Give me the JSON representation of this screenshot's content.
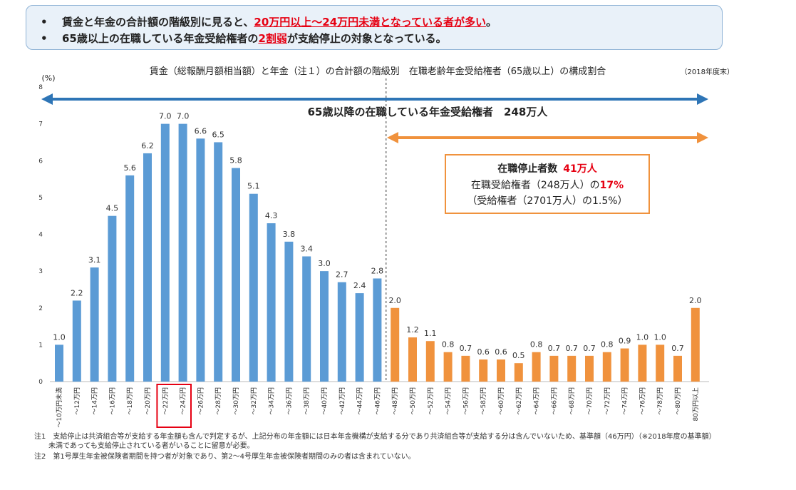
{
  "summary": {
    "line1": {
      "bullet": "•",
      "prefix": "賃金と年金の合計額の階級別に見ると、",
      "highlight": "20万円以上～24万円未満となっている者が多い",
      "suffix": "。"
    },
    "line2": {
      "bullet": "•",
      "prefix": "65歳以上の在職している年金受給権者の",
      "highlight": "2割弱",
      "suffix": "が支給停止の対象となっている。"
    }
  },
  "chart_data": {
    "type": "bar",
    "title": "賃金（総報酬月額相当額）と年金（注１）の合計額の階級別　在職老齢年金受給権者（65歳以上）の構成割合",
    "date_note": "（2018年度末）",
    "ylabel": "(%)",
    "ylim": [
      0,
      8
    ],
    "yticks": [
      0,
      1,
      2,
      3,
      4,
      5,
      6,
      7,
      8
    ],
    "grid": false,
    "categories": [
      "～10万円未満",
      "～12万円",
      "～14万円",
      "～16万円",
      "～18万円",
      "～20万円",
      "～22万円",
      "～24万円",
      "～26万円",
      "～28万円",
      "～30万円",
      "～32万円",
      "～34万円",
      "～36万円",
      "～38万円",
      "～40万円",
      "～42万円",
      "～44万円",
      "～46万円",
      "～48万円",
      "～50万円",
      "～52万円",
      "～54万円",
      "～56万円",
      "～58万円",
      "～60万円",
      "～62万円",
      "～64万円",
      "～66万円",
      "～68万円",
      "～70万円",
      "～72万円",
      "～74万円",
      "～76万円",
      "～78万円",
      "～80万円",
      "80万円以上"
    ],
    "series": [
      {
        "values": [
          1.0,
          2.2,
          3.1,
          4.5,
          5.6,
          6.2,
          7.0,
          7.0,
          6.6,
          6.5,
          5.8,
          5.1,
          4.3,
          3.8,
          3.4,
          3.0,
          2.7,
          2.4,
          2.8,
          2.0,
          1.2,
          1.1,
          0.8,
          0.7,
          0.6,
          0.6,
          0.5,
          0.8,
          0.7,
          0.7,
          0.7,
          0.8,
          0.9,
          1.0,
          1.0,
          0.7,
          2.0
        ]
      }
    ],
    "colors": {
      "not_suspended": "#5b9bd5",
      "suspended": "#f0923d",
      "arrow_all": "#2e75b6",
      "arrow_suspended": "#f0923d",
      "highlight_box": "#e60012"
    },
    "suspended_from_index": 19,
    "highlighted_indices": [
      6,
      7
    ],
    "annotations": {
      "all_arrow_label": "65歳以降の在職している年金受給権者　248万人",
      "box_title_prefix": "在職停止者数",
      "box_title_value": "41万人",
      "box_line2_prefix": "在職受給権者（248万人）の",
      "box_line2_value": "17%",
      "box_line3": "（受給権者（2701万人）の1.5%）"
    }
  },
  "notes": [
    "注1　支給停止は共済組合等が支給する年金額も含んで判定するが、上記分布の年金額には日本年金機構が支給する分であり共済組合等が支給する分は含んでいないため、基準額（46万円）（※2018年度の基準額）",
    "　　未満であっても支給停止されている者がいることに留意が必要。",
    "注2　第1号厚生年金被保険者期間を持つ者が対象であり、第2～4号厚生年金被保険者期間のみの者は含まれていない。"
  ]
}
